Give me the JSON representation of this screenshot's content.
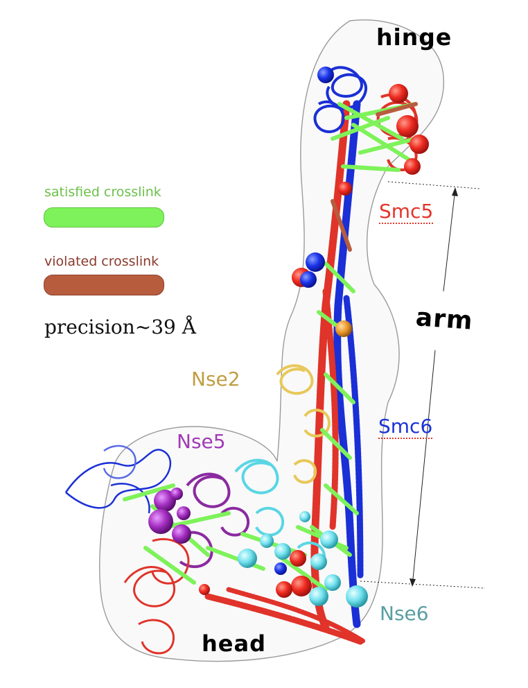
{
  "labels": {
    "hinge": "hinge",
    "arm": "arm",
    "head": "head",
    "smc5": "Smc5",
    "smc6": "Smc6",
    "nse2": "Nse2",
    "nse5": "Nse5",
    "nse6": "Nse6"
  },
  "legend": {
    "satisfied": "satisfied crosslink",
    "violated": "violated crosslink",
    "precision": "precision~39 Å"
  },
  "colors": {
    "satisfied": "#7ef25a",
    "violated": "#b75d3e",
    "smc5": "#e3352a",
    "smc6": "#1b33d6",
    "nse2": "#bf9e42",
    "nse5": "#a03ab5",
    "nse6": "#5a9ea3",
    "helix_red": "#e0332a",
    "helix_blue": "#1a2fd6",
    "helix_cyan": "#5ad6e4",
    "helix_purple": "#8b2aa0",
    "helix_yellow": "#e8c85a",
    "bead_red": "#f02a22",
    "bead_blue": "#1730e6",
    "bead_cyan": "#6be3ee",
    "bead_purple": "#a52fc2"
  }
}
